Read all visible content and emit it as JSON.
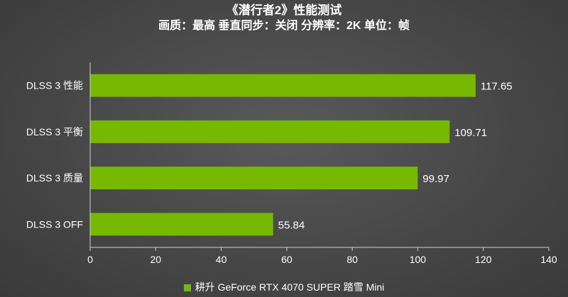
{
  "colors": {
    "bar": "#76b900",
    "axis": "#cfcfcf",
    "text": "#ffffff"
  },
  "chart_data": {
    "type": "bar",
    "orientation": "horizontal",
    "title": "《潜行者2》性能测试",
    "subtitle": "画质：最高 垂直同步：关闭 分辨率：2K 单位：帧",
    "categories": [
      "DLSS 3 性能",
      "DLSS 3 平衡",
      "DLSS 3 质量",
      "DLSS 3 OFF"
    ],
    "series": [
      {
        "name": "耕升 GeForce RTX 4070 SUPER 踏雪 Mini",
        "values": [
          117.65,
          109.71,
          99.97,
          55.84
        ]
      }
    ],
    "value_labels": [
      "117.65",
      "109.71",
      "99.97",
      "55.84"
    ],
    "xlim": [
      0,
      140
    ],
    "xticks": [
      0,
      20,
      40,
      60,
      80,
      100,
      120,
      140
    ],
    "grid": false,
    "legend_position": "bottom-center"
  }
}
